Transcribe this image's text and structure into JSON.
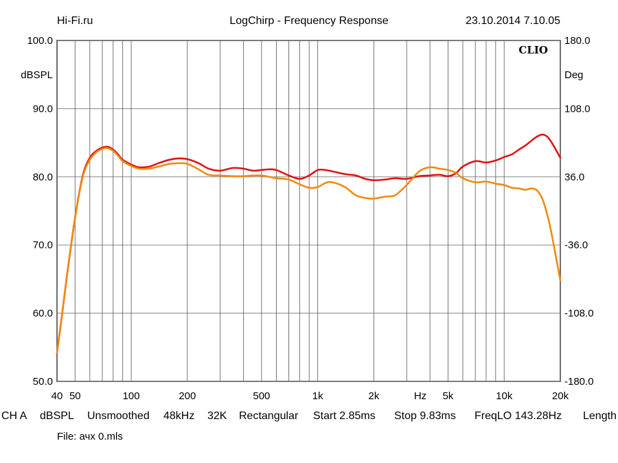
{
  "header": {
    "left": "Hi-Fi.ru",
    "center": "LogChirp - Frequency Response",
    "right": "23.10.2014 7.10.05"
  },
  "logo": "CLIO",
  "footer": {
    "settings": [
      "CH A",
      "dBSPL",
      "Unsmoothed",
      "48kHz",
      "32K",
      "Rectangular",
      "Start 2.85ms",
      "Stop 9.83ms",
      "FreqLO 143.28Hz",
      "Length"
    ],
    "file": "File: ачх 0.mls"
  },
  "chart_data": {
    "type": "line",
    "title": "LogChirp - Frequency Response",
    "x_scale": "log",
    "xlim": [
      40,
      20000
    ],
    "ylim": [
      50,
      100
    ],
    "y2lim": [
      -180,
      180
    ],
    "ylabel": "dBSPL",
    "y2label": "Deg",
    "xlabel": "Hz",
    "grid": true,
    "x_ticks": [
      {
        "value": 40,
        "label": "40"
      },
      {
        "value": 50,
        "label": "50"
      },
      {
        "value": 100,
        "label": "100"
      },
      {
        "value": 200,
        "label": "200"
      },
      {
        "value": 500,
        "label": "500"
      },
      {
        "value": 1000,
        "label": "1k"
      },
      {
        "value": 2000,
        "label": "2k"
      },
      {
        "value": 5000,
        "label": "5k"
      },
      {
        "value": 10000,
        "label": "10k"
      },
      {
        "value": 20000,
        "label": "20k"
      }
    ],
    "x_minor_grid": [
      60,
      70,
      80,
      90,
      300,
      400,
      600,
      700,
      800,
      900,
      3000,
      4000,
      6000,
      7000,
      8000,
      9000
    ],
    "y_ticks": [
      {
        "value": 100,
        "label": "100.0"
      },
      {
        "value": 90,
        "label": "90.0"
      },
      {
        "value": 80,
        "label": "80.0"
      },
      {
        "value": 70,
        "label": "70.0"
      },
      {
        "value": 60,
        "label": "60.0"
      },
      {
        "value": 50,
        "label": "50.0"
      }
    ],
    "y2_ticks": [
      {
        "value": 180,
        "label": "180.0"
      },
      {
        "value": 108,
        "label": "108.0"
      },
      {
        "value": 36,
        "label": "36.0"
      },
      {
        "value": -36,
        "label": "-36.0"
      },
      {
        "value": -108,
        "label": "-108.0"
      },
      {
        "value": -180,
        "label": "-180.0"
      }
    ],
    "series": [
      {
        "color": "#e01414",
        "x": [
          40,
          42,
          45,
          50,
          55,
          60,
          65,
          70,
          75,
          80,
          85,
          90,
          100,
          110,
          125,
          140,
          160,
          180,
          200,
          230,
          260,
          300,
          350,
          400,
          450,
          500,
          550,
          600,
          700,
          800,
          900,
          1000,
          1100,
          1200,
          1400,
          1600,
          1800,
          2000,
          2300,
          2600,
          3000,
          3500,
          4000,
          4500,
          5000,
          5500,
          6000,
          7000,
          8000,
          9000,
          10000,
          11000,
          12000,
          13000,
          14000,
          15000,
          16000,
          17000,
          18000,
          20000
        ],
        "y": [
          54.2,
          58.5,
          65,
          74,
          80.2,
          82.8,
          83.8,
          84.3,
          84.4,
          84.0,
          83.3,
          82.5,
          81.8,
          81.4,
          81.5,
          82.0,
          82.5,
          82.7,
          82.6,
          82.0,
          81.2,
          80.9,
          81.3,
          81.2,
          80.9,
          81.0,
          81.1,
          81.0,
          80.2,
          79.7,
          80.2,
          81.0,
          81.0,
          80.8,
          80.4,
          80.2,
          79.7,
          79.5,
          79.6,
          79.8,
          79.7,
          80.1,
          80.2,
          80.3,
          80.1,
          80.5,
          81.5,
          82.3,
          82.1,
          82.4,
          82.9,
          83.3,
          84.0,
          84.6,
          85.3,
          85.9,
          86.2,
          85.9,
          85.0,
          82.8
        ]
      },
      {
        "color": "#f08a10",
        "x": [
          40,
          42,
          45,
          50,
          55,
          60,
          65,
          70,
          75,
          80,
          85,
          90,
          100,
          110,
          125,
          140,
          160,
          180,
          200,
          230,
          260,
          300,
          350,
          400,
          450,
          500,
          550,
          600,
          700,
          800,
          900,
          1000,
          1100,
          1200,
          1400,
          1600,
          1800,
          2000,
          2300,
          2600,
          3000,
          3500,
          4000,
          4500,
          5000,
          5500,
          6000,
          7000,
          8000,
          9000,
          10000,
          11000,
          12000,
          13000,
          14000,
          15000,
          16000,
          17000,
          18000,
          20000
        ],
        "y": [
          54.2,
          58.5,
          65,
          74,
          80,
          82.5,
          83.6,
          84.1,
          84.2,
          83.8,
          83.1,
          82.3,
          81.6,
          81.2,
          81.2,
          81.5,
          81.9,
          82.0,
          81.9,
          81.1,
          80.3,
          80.2,
          80.1,
          80.1,
          80.2,
          80.2,
          80.0,
          79.8,
          79.6,
          78.9,
          78.4,
          78.5,
          79.1,
          79.2,
          78.5,
          77.3,
          76.9,
          76.8,
          77.1,
          77.3,
          78.8,
          80.8,
          81.4,
          81.2,
          81.0,
          80.6,
          79.8,
          79.2,
          79.3,
          79.0,
          78.8,
          78.4,
          78.3,
          78.1,
          78.3,
          78.0,
          76.8,
          74.5,
          71.5,
          64.8
        ]
      }
    ]
  }
}
